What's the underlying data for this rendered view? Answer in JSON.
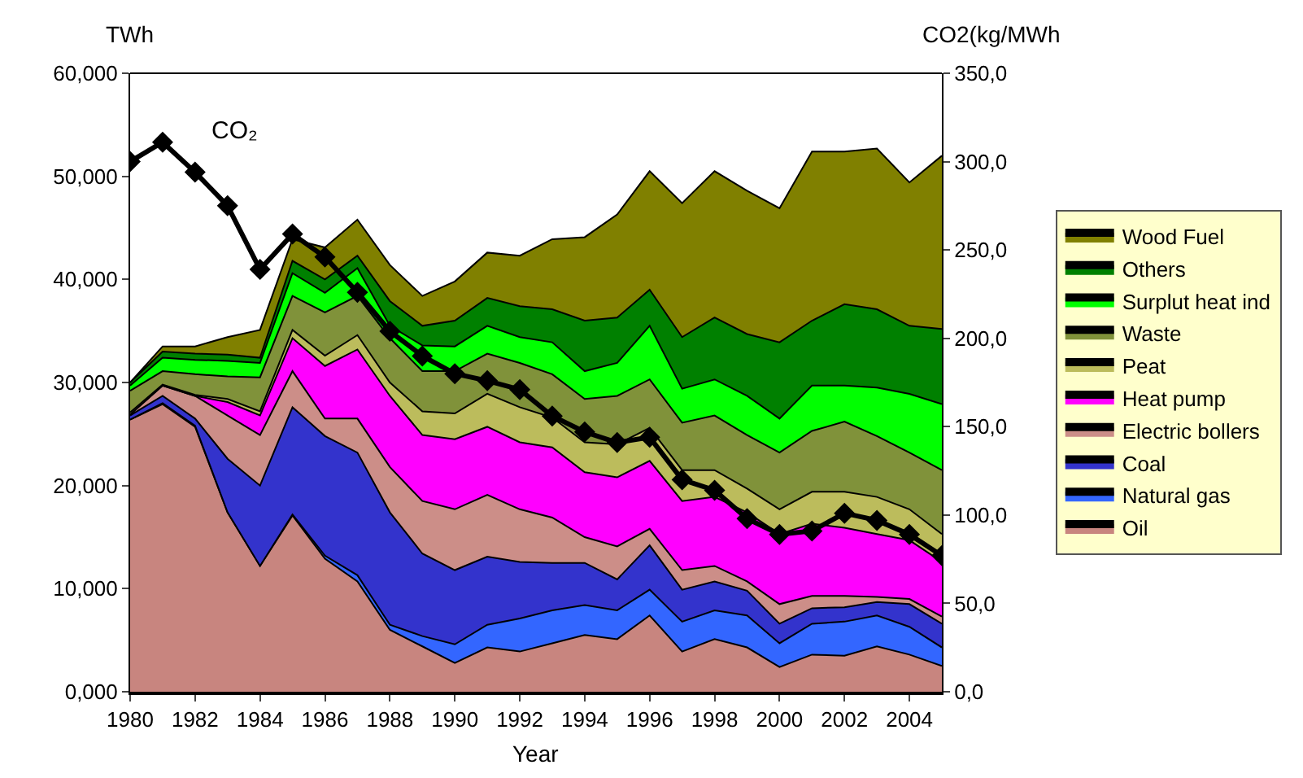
{
  "chart_data": {
    "type": "area",
    "stacked": true,
    "xlabel": "Year",
    "ylabel": "TWh",
    "y2label": "CO2(kg/MWh",
    "x": [
      1980,
      1981,
      1982,
      1983,
      1984,
      1985,
      1986,
      1987,
      1988,
      1989,
      1990,
      1991,
      1992,
      1993,
      1994,
      1995,
      1996,
      1997,
      1998,
      1999,
      2000,
      2001,
      2002,
      2003,
      2004,
      2005
    ],
    "series": [
      {
        "name": "Oil",
        "color": "#c8857f",
        "values": [
          26.4,
          27.9,
          25.7,
          17.4,
          12.2,
          17.1,
          12.9,
          10.7,
          6.0,
          4.4,
          2.8,
          4.3,
          3.9,
          4.7,
          5.5,
          5.1,
          7.4,
          3.9,
          5.1,
          4.3,
          2.4,
          3.6,
          3.5,
          4.4,
          3.6,
          2.5
        ]
      },
      {
        "name": "Natural gas",
        "color": "#3366ff",
        "values": [
          0.0,
          0.1,
          0.1,
          0.0,
          0.0,
          0.1,
          0.3,
          0.6,
          0.5,
          1.0,
          1.8,
          2.2,
          3.2,
          3.2,
          2.9,
          2.8,
          2.5,
          2.9,
          2.8,
          3.1,
          2.3,
          3.0,
          3.3,
          3.0,
          2.7,
          1.8
        ]
      },
      {
        "name": "Coal",
        "color": "#3333cc",
        "values": [
          0.4,
          0.7,
          0.7,
          5.2,
          7.8,
          10.4,
          11.6,
          11.9,
          10.9,
          8.0,
          7.2,
          6.6,
          5.5,
          4.6,
          4.1,
          3.0,
          4.3,
          3.1,
          2.8,
          2.4,
          1.9,
          1.5,
          1.4,
          1.3,
          2.2,
          2.3
        ]
      },
      {
        "name": "Electric bollers",
        "color": "#cc8e88",
        "values": [
          0.1,
          1.0,
          2.2,
          4.2,
          4.9,
          3.5,
          1.7,
          3.3,
          4.4,
          5.1,
          5.9,
          6.0,
          5.1,
          4.4,
          2.5,
          3.2,
          1.6,
          1.9,
          1.5,
          0.9,
          1.9,
          1.2,
          1.1,
          0.5,
          0.5,
          0.7
        ]
      },
      {
        "name": "Heat pump",
        "color": "#ff00ff",
        "values": [
          0.0,
          0.0,
          0.0,
          1.3,
          1.9,
          3.2,
          5.1,
          6.7,
          6.9,
          6.4,
          6.8,
          6.6,
          6.5,
          6.8,
          6.3,
          6.7,
          6.6,
          6.7,
          6.7,
          6.7,
          6.8,
          7.0,
          6.6,
          6.1,
          5.7,
          5.3
        ]
      },
      {
        "name": "Peat",
        "color": "#bcbc5c",
        "values": [
          0.2,
          0.1,
          0.1,
          0.3,
          0.4,
          0.8,
          1.0,
          1.4,
          1.3,
          2.3,
          2.5,
          3.2,
          3.4,
          2.9,
          2.9,
          3.2,
          3.2,
          3.0,
          2.6,
          2.3,
          2.4,
          3.1,
          3.5,
          3.6,
          3.0,
          2.7
        ]
      },
      {
        "name": "Waste",
        "color": "#80923a",
        "values": [
          2.1,
          1.3,
          2.0,
          2.2,
          3.3,
          3.3,
          4.2,
          3.8,
          4.3,
          3.9,
          4.1,
          3.9,
          4.3,
          4.2,
          4.2,
          4.7,
          4.7,
          4.6,
          5.3,
          5.2,
          5.5,
          5.9,
          6.8,
          5.9,
          5.5,
          6.2
        ]
      },
      {
        "name": "Surplut heat ind",
        "color": "#00ff00",
        "values": [
          0.5,
          1.3,
          1.4,
          1.5,
          1.4,
          2.2,
          1.9,
          2.7,
          1.2,
          2.5,
          2.4,
          2.7,
          2.5,
          3.1,
          2.7,
          3.2,
          5.2,
          3.3,
          3.5,
          3.8,
          3.3,
          4.4,
          3.5,
          4.7,
          5.7,
          6.4
        ]
      },
      {
        "name": "Others",
        "color": "#008000",
        "values": [
          0.3,
          0.6,
          0.6,
          0.6,
          0.5,
          1.2,
          1.3,
          1.2,
          2.4,
          1.9,
          2.5,
          2.7,
          3.0,
          3.2,
          4.9,
          4.4,
          3.5,
          5.0,
          6.0,
          6.0,
          7.4,
          6.3,
          7.9,
          7.6,
          6.6,
          7.3
        ]
      },
      {
        "name": "Wood Fuel",
        "color": "#808000",
        "values": [
          0.0,
          0.5,
          0.7,
          1.7,
          2.7,
          2.1,
          3.1,
          3.5,
          3.5,
          2.9,
          3.8,
          4.4,
          4.9,
          6.8,
          8.1,
          10.0,
          11.5,
          13.0,
          14.2,
          13.9,
          13.0,
          16.4,
          14.8,
          15.6,
          13.9,
          16.8
        ]
      },
      {
        "name": "CO₂",
        "type": "line",
        "axis": "y2",
        "marker": "diamond",
        "color": "#000000",
        "values": [
          300,
          311,
          294,
          275,
          239,
          259,
          246,
          226,
          204,
          190,
          180,
          176,
          171,
          156,
          147,
          141,
          144,
          120,
          114,
          98,
          89,
          91,
          101,
          97,
          89,
          77
        ]
      }
    ],
    "xlim": [
      1980,
      2005
    ],
    "xticks": [
      1980,
      1982,
      1984,
      1986,
      1988,
      1990,
      1992,
      1994,
      1996,
      1998,
      2000,
      2002,
      2004
    ],
    "ylim": [
      0,
      60
    ],
    "yticks": [
      {
        "value": 0,
        "label": "0,000"
      },
      {
        "value": 10,
        "label": "10,000"
      },
      {
        "value": 20,
        "label": "20,000"
      },
      {
        "value": 30,
        "label": "30,000"
      },
      {
        "value": 40,
        "label": "40,000"
      },
      {
        "value": 50,
        "label": "50,000"
      },
      {
        "value": 60,
        "label": "60,000"
      }
    ],
    "y2lim": [
      0,
      350
    ],
    "y2ticks": [
      {
        "value": 0,
        "label": "0,0"
      },
      {
        "value": 50,
        "label": "50,0"
      },
      {
        "value": 100,
        "label": "100,0"
      },
      {
        "value": 150,
        "label": "150,0"
      },
      {
        "value": 200,
        "label": "200,0"
      },
      {
        "value": 250,
        "label": "250,0"
      },
      {
        "value": 300,
        "label": "300,0"
      },
      {
        "value": 350,
        "label": "350,0"
      }
    ],
    "legend": "right"
  }
}
